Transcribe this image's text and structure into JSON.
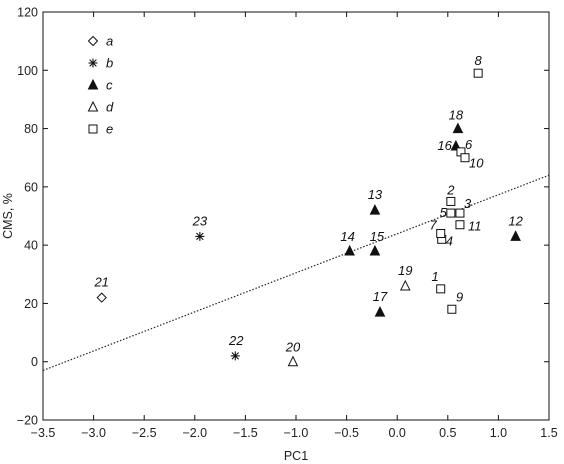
{
  "chart_data": {
    "type": "scatter",
    "title": "",
    "xlabel": "PC1",
    "ylabel": "CMS, %",
    "xlim": [
      -3.5,
      1.5
    ],
    "ylim": [
      -20,
      120
    ],
    "xticks": [
      -3.5,
      -3.0,
      -2.5,
      -2.0,
      -1.5,
      -1.0,
      -0.5,
      0.0,
      0.5,
      1.0,
      1.5
    ],
    "xtick_labels": [
      "−3.5",
      "−3.0",
      "−2.5",
      "−2.0",
      "−1.5",
      "−1.0",
      "−0.5",
      "0.0",
      "0.5",
      "1.0",
      "1.5"
    ],
    "yticks": [
      -20,
      0,
      20,
      40,
      60,
      80,
      100,
      120
    ],
    "ytick_labels": [
      "−20",
      "0",
      "20",
      "40",
      "60",
      "80",
      "100",
      "120"
    ],
    "grid": false,
    "legend_position": "top-left",
    "series": [
      {
        "name": "a",
        "marker": "diamond-open",
        "points": [
          {
            "label": "21",
            "x": -2.92,
            "y": 22
          }
        ]
      },
      {
        "name": "b",
        "marker": "asterisk",
        "points": [
          {
            "label": "22",
            "x": -1.6,
            "y": 2
          },
          {
            "label": "23",
            "x": -1.95,
            "y": 43
          }
        ]
      },
      {
        "name": "c",
        "marker": "triangle-filled",
        "points": [
          {
            "label": "12",
            "x": 1.17,
            "y": 43
          },
          {
            "label": "13",
            "x": -0.22,
            "y": 52
          },
          {
            "label": "14",
            "x": -0.47,
            "y": 38
          },
          {
            "label": "15",
            "x": -0.22,
            "y": 38
          },
          {
            "label": "16",
            "x": 0.58,
            "y": 74
          },
          {
            "label": "17",
            "x": -0.17,
            "y": 17
          },
          {
            "label": "18",
            "x": 0.6,
            "y": 80
          }
        ]
      },
      {
        "name": "d",
        "marker": "triangle-open",
        "points": [
          {
            "label": "19",
            "x": 0.08,
            "y": 26
          },
          {
            "label": "20",
            "x": -1.03,
            "y": 0
          }
        ]
      },
      {
        "name": "e",
        "marker": "square-open",
        "points": [
          {
            "label": "1",
            "x": 0.43,
            "y": 25
          },
          {
            "label": "2",
            "x": 0.53,
            "y": 55
          },
          {
            "label": "3",
            "x": 0.62,
            "y": 51
          },
          {
            "label": "4",
            "x": 0.44,
            "y": 42
          },
          {
            "label": "5",
            "x": 0.53,
            "y": 51
          },
          {
            "label": "6",
            "x": 0.63,
            "y": 72
          },
          {
            "label": "7",
            "x": 0.43,
            "y": 44
          },
          {
            "label": "8",
            "x": 0.8,
            "y": 99
          },
          {
            "label": "9",
            "x": 0.54,
            "y": 18
          },
          {
            "label": "10",
            "x": 0.67,
            "y": 70
          },
          {
            "label": "11",
            "x": 0.62,
            "y": 47
          }
        ]
      }
    ],
    "trendline": {
      "style": "dotted",
      "x": [
        -3.5,
        1.5
      ],
      "y": [
        -3,
        64
      ]
    }
  }
}
